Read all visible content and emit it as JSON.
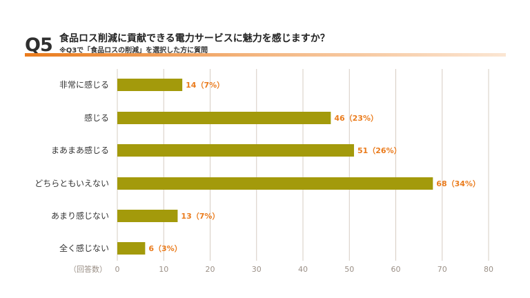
{
  "header": {
    "question_number": "Q5",
    "title": "食品ロス削減に貢献できる電力サービスに魅力を感じますか？",
    "subtitle": "※Q3で「食品ロスの削減」を選択した方に質問"
  },
  "colors": {
    "bar": "#a39a0b",
    "value_label": "#ea7b1c",
    "accent": "#ea7b1c",
    "grid": "#d6ccc2"
  },
  "chart_data": {
    "type": "bar",
    "orientation": "horizontal",
    "categories": [
      "非常に感じる",
      "感じる",
      "まあまあ感じる",
      "どちらともいえない",
      "あまり感じない",
      "全く感じない"
    ],
    "values": [
      14,
      46,
      51,
      68,
      13,
      6
    ],
    "value_labels": [
      "14（7%）",
      "46（23%）",
      "51（26%）",
      "68（34%）",
      "13（7%）",
      "6（3%）"
    ],
    "xlabel": "（回答数）",
    "xlim": [
      0,
      80
    ],
    "xticks": [
      0,
      10,
      20,
      30,
      40,
      50,
      60,
      70,
      80
    ],
    "grid": true
  }
}
